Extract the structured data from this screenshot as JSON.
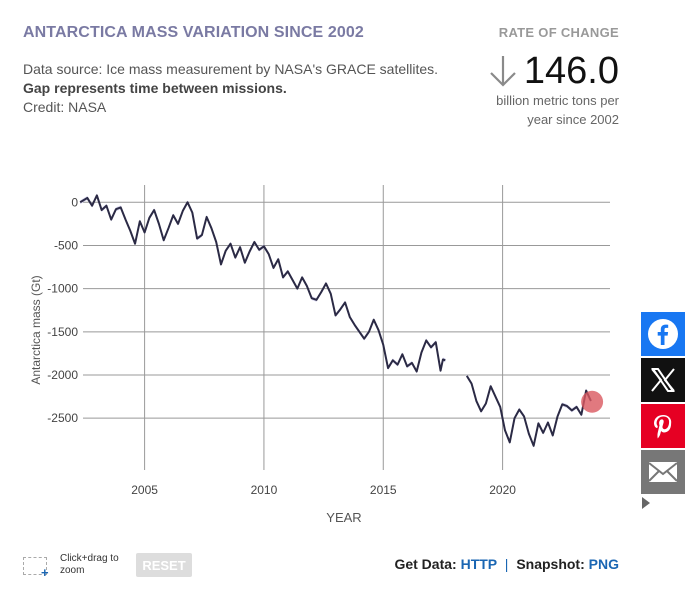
{
  "header": {
    "title": "ANTARCTICA MASS VARIATION SINCE 2002",
    "source_line": "Data source: Ice mass measurement by NASA's GRACE satellites.",
    "gap_note": "Gap represents time between missions.",
    "credit": "Credit: NASA"
  },
  "rate": {
    "label": "RATE OF CHANGE",
    "value": "146.0",
    "unit": "billion metric tons per year since 2002"
  },
  "colors": {
    "line": "#2b2a45",
    "band": "#c6c3e8",
    "grid": "#999999",
    "marker": "#d9575f",
    "title": "#7a7aa3",
    "link": "#1a66b3"
  },
  "chart_data": {
    "type": "line",
    "title": "",
    "xlabel": "YEAR",
    "ylabel": "Antarctica mass (Gt)",
    "xlim": [
      2002,
      2024.5
    ],
    "ylim": [
      -3100,
      200
    ],
    "xticks": [
      2005,
      2010,
      2015,
      2020
    ],
    "yticks": [
      0,
      -500,
      -1000,
      -1500,
      -2000,
      -2500
    ],
    "grid": true,
    "series": [
      {
        "values": [
          [
            2002.3,
            0
          ],
          [
            2002.6,
            50
          ],
          [
            2002.8,
            -40
          ],
          [
            2003.0,
            80
          ],
          [
            2003.2,
            -90
          ],
          [
            2003.4,
            -40
          ],
          [
            2003.6,
            -200
          ],
          [
            2003.8,
            -80
          ],
          [
            2004.0,
            -60
          ],
          [
            2004.2,
            -200
          ],
          [
            2004.4,
            -330
          ],
          [
            2004.6,
            -480
          ],
          [
            2004.8,
            -220
          ],
          [
            2005.0,
            -350
          ],
          [
            2005.2,
            -180
          ],
          [
            2005.4,
            -90
          ],
          [
            2005.6,
            -250
          ],
          [
            2005.8,
            -440
          ],
          [
            2006.0,
            -300
          ],
          [
            2006.2,
            -150
          ],
          [
            2006.4,
            -250
          ],
          [
            2006.6,
            -100
          ],
          [
            2006.8,
            0
          ],
          [
            2007.0,
            -120
          ],
          [
            2007.2,
            -420
          ],
          [
            2007.4,
            -380
          ],
          [
            2007.6,
            -170
          ],
          [
            2007.8,
            -300
          ],
          [
            2008.0,
            -460
          ],
          [
            2008.2,
            -720
          ],
          [
            2008.4,
            -560
          ],
          [
            2008.6,
            -480
          ],
          [
            2008.8,
            -640
          ],
          [
            2009.0,
            -520
          ],
          [
            2009.2,
            -700
          ],
          [
            2009.4,
            -570
          ],
          [
            2009.6,
            -460
          ],
          [
            2009.8,
            -550
          ],
          [
            2010.0,
            -510
          ],
          [
            2010.2,
            -600
          ],
          [
            2010.4,
            -760
          ],
          [
            2010.6,
            -660
          ],
          [
            2010.8,
            -870
          ],
          [
            2011.0,
            -800
          ],
          [
            2011.2,
            -900
          ],
          [
            2011.4,
            -1000
          ],
          [
            2011.6,
            -870
          ],
          [
            2011.8,
            -970
          ],
          [
            2012.0,
            -1110
          ],
          [
            2012.2,
            -1130
          ],
          [
            2012.4,
            -1040
          ],
          [
            2012.6,
            -940
          ],
          [
            2012.8,
            -1060
          ],
          [
            2013.0,
            -1310
          ],
          [
            2013.2,
            -1240
          ],
          [
            2013.4,
            -1160
          ],
          [
            2013.6,
            -1330
          ],
          [
            2013.8,
            -1420
          ],
          [
            2014.0,
            -1500
          ],
          [
            2014.2,
            -1580
          ],
          [
            2014.4,
            -1500
          ],
          [
            2014.6,
            -1360
          ],
          [
            2014.8,
            -1480
          ],
          [
            2015.0,
            -1650
          ],
          [
            2015.2,
            -1920
          ],
          [
            2015.4,
            -1830
          ],
          [
            2015.6,
            -1880
          ],
          [
            2015.8,
            -1760
          ],
          [
            2016.0,
            -1900
          ],
          [
            2016.2,
            -1860
          ],
          [
            2016.4,
            -1960
          ],
          [
            2016.6,
            -1740
          ],
          [
            2016.8,
            -1600
          ],
          [
            2017.0,
            -1680
          ],
          [
            2017.2,
            -1620
          ],
          [
            2017.4,
            -1950
          ],
          [
            2017.5,
            -1820
          ],
          [
            2017.6,
            -1830
          ]
        ]
      },
      {
        "values": [
          [
            2018.5,
            -2010
          ],
          [
            2018.7,
            -2100
          ],
          [
            2018.9,
            -2300
          ],
          [
            2019.1,
            -2420
          ],
          [
            2019.3,
            -2330
          ],
          [
            2019.5,
            -2130
          ],
          [
            2019.7,
            -2250
          ],
          [
            2019.9,
            -2370
          ],
          [
            2020.1,
            -2640
          ],
          [
            2020.3,
            -2780
          ],
          [
            2020.5,
            -2500
          ],
          [
            2020.7,
            -2400
          ],
          [
            2020.9,
            -2480
          ],
          [
            2021.1,
            -2680
          ],
          [
            2021.3,
            -2820
          ],
          [
            2021.5,
            -2560
          ],
          [
            2021.7,
            -2670
          ],
          [
            2021.9,
            -2550
          ],
          [
            2022.1,
            -2700
          ],
          [
            2022.3,
            -2480
          ],
          [
            2022.5,
            -2340
          ],
          [
            2022.7,
            -2360
          ],
          [
            2022.9,
            -2410
          ],
          [
            2023.1,
            -2370
          ],
          [
            2023.3,
            -2460
          ],
          [
            2023.5,
            -2180
          ],
          [
            2023.7,
            -2300
          ]
        ]
      }
    ],
    "highlight_point": [
      2023.75,
      -2310
    ]
  },
  "controls": {
    "zoom_hint": "Click+drag to zoom",
    "reset": "RESET"
  },
  "footer": {
    "get_data_label": "Get Data:",
    "http": "HTTP",
    "separator": "|",
    "snapshot_label": "Snapshot:",
    "png": "PNG"
  },
  "share": {
    "facebook": "facebook-icon",
    "x": "x-icon",
    "pinterest": "pinterest-icon",
    "email": "mail-icon"
  }
}
